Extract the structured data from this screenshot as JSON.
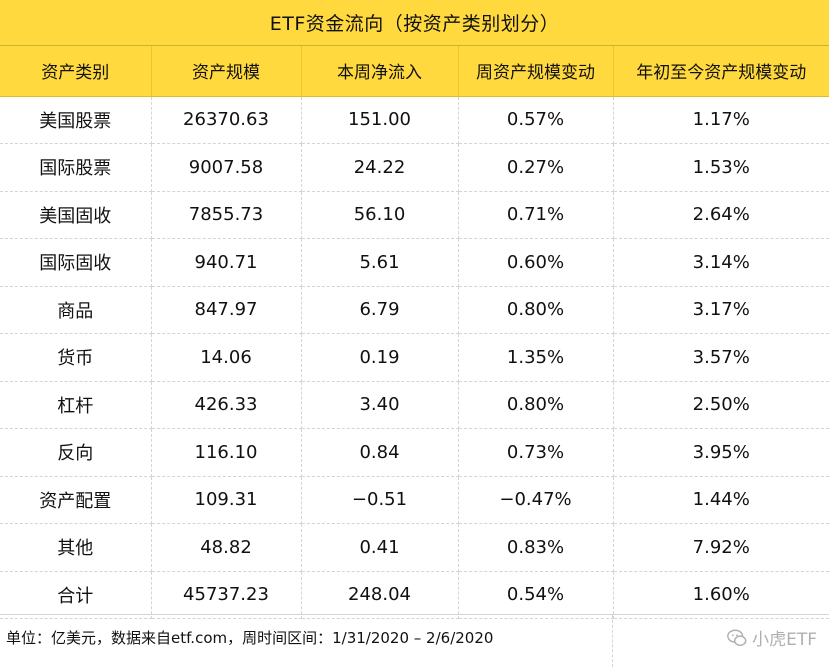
{
  "title": "ETF资金流向（按资产类别划分）",
  "columns": [
    "资产类别",
    "资产规模",
    "本周净流入",
    "周资产规模变动",
    "年初至今资产规模变动"
  ],
  "rows": [
    [
      "美国股票",
      "26370.63",
      "151.00",
      "0.57%",
      "1.17%"
    ],
    [
      "国际股票",
      "9007.58",
      "24.22",
      "0.27%",
      "1.53%"
    ],
    [
      "美国固收",
      "7855.73",
      "56.10",
      "0.71%",
      "2.64%"
    ],
    [
      "国际固收",
      "940.71",
      "5.61",
      "0.60%",
      "3.14%"
    ],
    [
      "商品",
      "847.97",
      "6.79",
      "0.80%",
      "3.17%"
    ],
    [
      "货币",
      "14.06",
      "0.19",
      "1.35%",
      "3.57%"
    ],
    [
      "杠杆",
      "426.33",
      "3.40",
      "0.80%",
      "2.50%"
    ],
    [
      "反向",
      "116.10",
      "0.84",
      "0.73%",
      "3.95%"
    ],
    [
      "资产配置",
      "109.31",
      "−0.51",
      "−0.47%",
      "1.44%"
    ],
    [
      "其他",
      "48.82",
      "0.41",
      "0.83%",
      "7.92%"
    ],
    [
      "合计",
      "45737.23",
      "248.04",
      "0.54%",
      "1.60%"
    ]
  ],
  "footer": {
    "note": "单位：亿美元，数据来自etf.com，周时间区间：1/31/2020 – 2/6/2020",
    "watermark": "小虎ETF",
    "watermark_icon": "wechat-icon"
  },
  "colors": {
    "header_bg": "#ffd93d",
    "grid_line": "#d4d4d4",
    "watermark": "#b0b0b0"
  }
}
